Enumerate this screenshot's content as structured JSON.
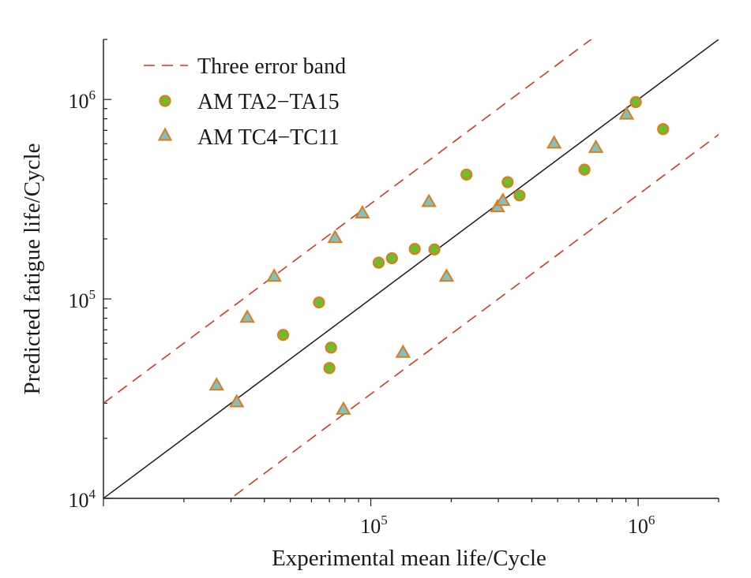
{
  "chart_data": {
    "type": "scatter",
    "x_scale": "log",
    "y_scale": "log",
    "xlabel": "Experimental mean life/Cycle",
    "ylabel": "Predicted fatigue life/Cycle",
    "xlim": [
      10000,
      2000000
    ],
    "ylim": [
      10000,
      2000000
    ],
    "x_ticks": [
      {
        "value": 100000,
        "base": "10",
        "exp": "5"
      },
      {
        "value": 1000000,
        "base": "10",
        "exp": "6"
      }
    ],
    "y_ticks": [
      {
        "value": 10000,
        "base": "10",
        "exp": "4"
      },
      {
        "value": 100000,
        "base": "10",
        "exp": "5"
      },
      {
        "value": 1000000,
        "base": "10",
        "exp": "6"
      }
    ],
    "legend_position": "top-left",
    "grid": false,
    "reference_line": {
      "type": "y=x",
      "color": "#1a1a1a"
    },
    "error_band": {
      "name": "Three error band",
      "factor": 3,
      "color": "#d0392b",
      "style": "dashed"
    },
    "series": [
      {
        "name": "AM TA2−TA15",
        "marker": "circle",
        "fill": "#6abf2e",
        "stroke": "#e07b1a",
        "points": [
          {
            "x": 47000,
            "y": 66000
          },
          {
            "x": 64000,
            "y": 96000
          },
          {
            "x": 70000,
            "y": 45000
          },
          {
            "x": 71000,
            "y": 57000
          },
          {
            "x": 107000,
            "y": 152000
          },
          {
            "x": 120000,
            "y": 160000
          },
          {
            "x": 146000,
            "y": 178000
          },
          {
            "x": 173000,
            "y": 177000
          },
          {
            "x": 228000,
            "y": 420000
          },
          {
            "x": 325000,
            "y": 385000
          },
          {
            "x": 360000,
            "y": 330000
          },
          {
            "x": 630000,
            "y": 445000
          },
          {
            "x": 980000,
            "y": 970000
          },
          {
            "x": 1240000,
            "y": 710000
          }
        ]
      },
      {
        "name": "AM TC4−TC11",
        "marker": "triangle",
        "fill": "#7ec3c3",
        "stroke": "#e07b1a",
        "points": [
          {
            "x": 26500,
            "y": 37000
          },
          {
            "x": 31500,
            "y": 30500
          },
          {
            "x": 34500,
            "y": 81000
          },
          {
            "x": 43500,
            "y": 130000
          },
          {
            "x": 73500,
            "y": 203000
          },
          {
            "x": 79000,
            "y": 28000
          },
          {
            "x": 93000,
            "y": 270000
          },
          {
            "x": 132000,
            "y": 54000
          },
          {
            "x": 165000,
            "y": 308000
          },
          {
            "x": 192000,
            "y": 130000
          },
          {
            "x": 298000,
            "y": 290000
          },
          {
            "x": 312000,
            "y": 312000
          },
          {
            "x": 485000,
            "y": 605000
          },
          {
            "x": 695000,
            "y": 575000
          },
          {
            "x": 905000,
            "y": 845000
          }
        ]
      }
    ]
  }
}
